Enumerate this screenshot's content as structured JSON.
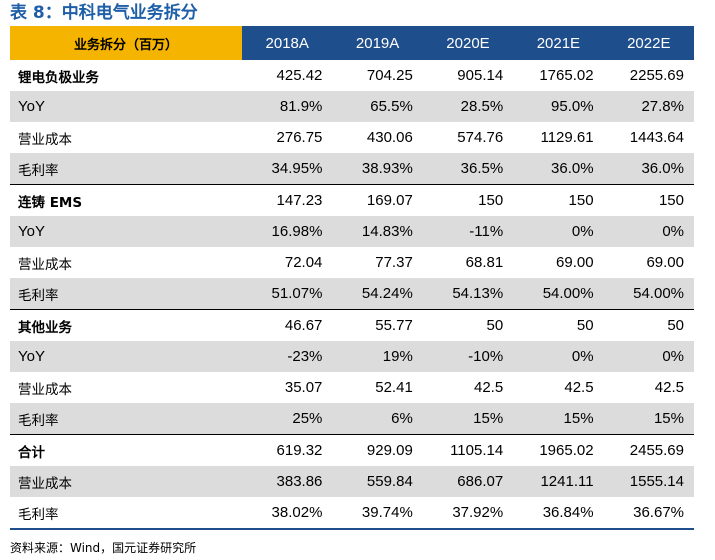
{
  "title": "表 8：中科电气业务拆分",
  "table": {
    "header_label": "业务拆分（百万）",
    "years": [
      "2018A",
      "2019A",
      "2020E",
      "2021E",
      "2022E"
    ],
    "rows": [
      {
        "label": "锂电负极业务",
        "values": [
          "425.42",
          "704.25",
          "905.14",
          "1765.02",
          "2255.69"
        ],
        "bold": true,
        "section_start": false
      },
      {
        "label": "YoY",
        "values": [
          "81.9%",
          "65.5%",
          "28.5%",
          "95.0%",
          "27.8%"
        ],
        "bold": false,
        "section_start": false
      },
      {
        "label": "营业成本",
        "values": [
          "276.75",
          "430.06",
          "574.76",
          "1129.61",
          "1443.64"
        ],
        "bold": false,
        "section_start": false
      },
      {
        "label": "毛利率",
        "values": [
          "34.95%",
          "38.93%",
          "36.5%",
          "36.0%",
          "36.0%"
        ],
        "bold": false,
        "section_start": false
      },
      {
        "label": "连铸 EMS",
        "values": [
          "147.23",
          "169.07",
          "150",
          "150",
          "150"
        ],
        "bold": true,
        "section_start": true
      },
      {
        "label": "YoY",
        "values": [
          "16.98%",
          "14.83%",
          "-11%",
          "0%",
          "0%"
        ],
        "bold": false,
        "section_start": false
      },
      {
        "label": "营业成本",
        "values": [
          "72.04",
          "77.37",
          "68.81",
          "69.00",
          "69.00"
        ],
        "bold": false,
        "section_start": false
      },
      {
        "label": "毛利率",
        "values": [
          "51.07%",
          "54.24%",
          "54.13%",
          "54.00%",
          "54.00%"
        ],
        "bold": false,
        "section_start": false
      },
      {
        "label": "其他业务",
        "values": [
          "46.67",
          "55.77",
          "50",
          "50",
          "50"
        ],
        "bold": true,
        "section_start": true
      },
      {
        "label": "YoY",
        "values": [
          "-23%",
          "19%",
          "-10%",
          "0%",
          "0%"
        ],
        "bold": false,
        "section_start": false
      },
      {
        "label": "营业成本",
        "values": [
          "35.07",
          "52.41",
          "42.5",
          "42.5",
          "42.5"
        ],
        "bold": false,
        "section_start": false
      },
      {
        "label": "毛利率",
        "values": [
          "25%",
          "6%",
          "15%",
          "15%",
          "15%"
        ],
        "bold": false,
        "section_start": false
      },
      {
        "label": "合计",
        "values": [
          "619.32",
          "929.09",
          "1105.14",
          "1965.02",
          "2455.69"
        ],
        "bold": true,
        "section_start": true
      },
      {
        "label": "营业成本",
        "values": [
          "383.86",
          "559.84",
          "686.07",
          "1241.11",
          "1555.14"
        ],
        "bold": false,
        "section_start": false
      },
      {
        "label": "毛利率",
        "values": [
          "38.02%",
          "39.74%",
          "37.92%",
          "36.84%",
          "36.67%"
        ],
        "bold": false,
        "section_start": false
      }
    ]
  },
  "source": "资料来源：Wind，国元证券研究所",
  "colors": {
    "title": "#1f5fa8",
    "header_bg": "#1f4e8c",
    "header_label_bg": "#f5b400",
    "stripe": "#dcdcdc"
  }
}
